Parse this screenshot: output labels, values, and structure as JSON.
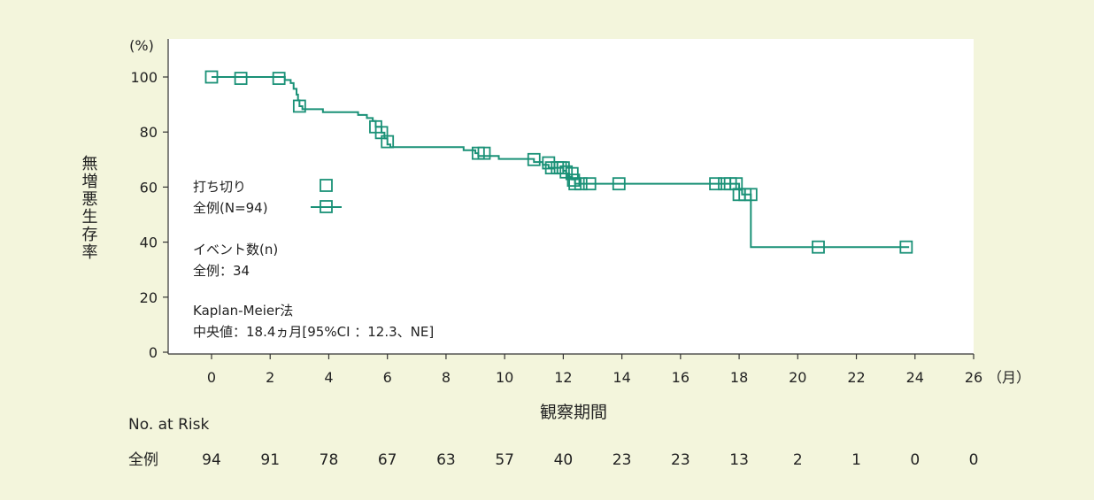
{
  "chart_data": {
    "type": "line",
    "subtype": "kaplan-meier",
    "ylabel": "無増悪生存率",
    "yunit": "(%)",
    "xlabel": "観察期間",
    "xunit": "（月）",
    "xlim": [
      0,
      26
    ],
    "ylim": [
      0,
      100
    ],
    "xticks": [
      0,
      2,
      4,
      6,
      8,
      10,
      12,
      14,
      16,
      18,
      20,
      22,
      24,
      26
    ],
    "yticks": [
      0,
      20,
      40,
      60,
      80,
      100
    ],
    "line_color": "#1a9177",
    "steps": [
      [
        0,
        100
      ],
      [
        2.5,
        98.9
      ],
      [
        2.7,
        97.8
      ],
      [
        2.8,
        95.7
      ],
      [
        2.9,
        93.6
      ],
      [
        2.95,
        91.5
      ],
      [
        3.0,
        89.4
      ],
      [
        3.1,
        88.3
      ],
      [
        3.8,
        87.2
      ],
      [
        5.0,
        86.2
      ],
      [
        5.3,
        85.1
      ],
      [
        5.5,
        84.0
      ],
      [
        5.6,
        81.9
      ],
      [
        5.8,
        79.8
      ],
      [
        5.9,
        77.7
      ],
      [
        6.0,
        75.5
      ],
      [
        6.1,
        74.5
      ],
      [
        8.6,
        73.4
      ],
      [
        9.0,
        72.3
      ],
      [
        9.1,
        71.3
      ],
      [
        9.8,
        70.2
      ],
      [
        11.0,
        69.1
      ],
      [
        11.3,
        68.1
      ],
      [
        11.5,
        67.0
      ],
      [
        12.0,
        65.9
      ],
      [
        12.1,
        64.9
      ],
      [
        12.2,
        63.8
      ],
      [
        12.3,
        62.8
      ],
      [
        12.4,
        61.2
      ],
      [
        18.0,
        59.0
      ],
      [
        18.1,
        57.3
      ],
      [
        18.4,
        38.2
      ],
      [
        23.8,
        38.2
      ]
    ],
    "censored": [
      [
        0,
        100
      ],
      [
        1.0,
        99.5
      ],
      [
        2.3,
        99.5
      ],
      [
        3.0,
        89.4
      ],
      [
        5.6,
        81.9
      ],
      [
        5.8,
        79.8
      ],
      [
        6.0,
        76.5
      ],
      [
        9.1,
        72.3
      ],
      [
        9.3,
        72.3
      ],
      [
        11.0,
        70.0
      ],
      [
        11.5,
        68.8
      ],
      [
        11.6,
        67.0
      ],
      [
        11.8,
        67.0
      ],
      [
        11.9,
        67.0
      ],
      [
        12.0,
        67.0
      ],
      [
        12.1,
        65.5
      ],
      [
        12.3,
        64.9
      ],
      [
        12.35,
        62.5
      ],
      [
        12.4,
        61.2
      ],
      [
        12.6,
        61.2
      ],
      [
        12.9,
        61.2
      ],
      [
        13.9,
        61.2
      ],
      [
        17.2,
        61.2
      ],
      [
        17.5,
        61.2
      ],
      [
        17.7,
        61.2
      ],
      [
        17.9,
        61.2
      ],
      [
        18.0,
        57.3
      ],
      [
        18.2,
        57.3
      ],
      [
        18.4,
        57.3
      ],
      [
        20.7,
        38.2
      ],
      [
        23.7,
        38.2
      ]
    ],
    "legend": {
      "censor_label": "打ち切り",
      "series_label": "全例(N=94)"
    },
    "annotations": {
      "events_title": "イベント数(n)",
      "events_value": "全例：34",
      "method": "Kaplan-Meier法",
      "median": "中央値：18.4ヵ月[95%CI ：12.3、NE]"
    },
    "risk_table": {
      "title": "No. at Risk",
      "row_label": "全例",
      "values": [
        "94",
        "91",
        "78",
        "67",
        "63",
        "57",
        "40",
        "23",
        "23",
        "13",
        "2",
        "1",
        "0",
        "0"
      ]
    }
  }
}
